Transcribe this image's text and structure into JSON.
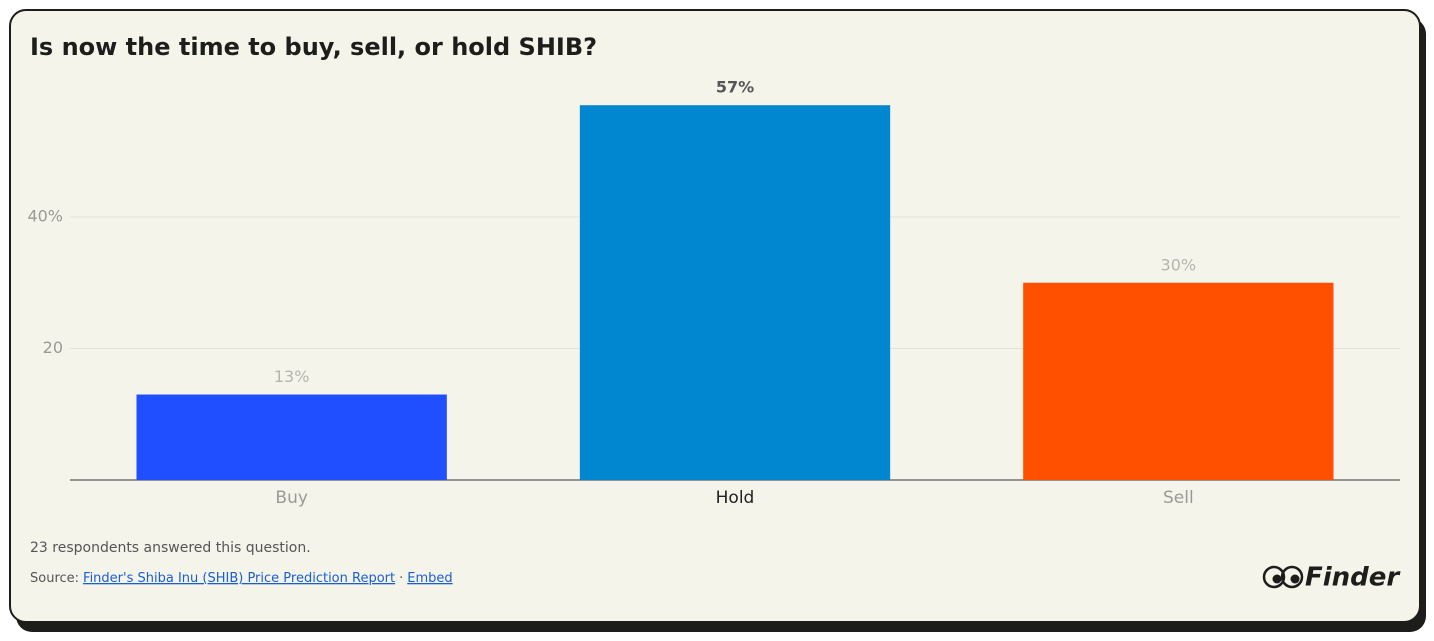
{
  "chart_data": {
    "type": "bar",
    "title": "Is now the time to buy, sell, or hold SHIB?",
    "categories": [
      "Buy",
      "Hold",
      "Sell"
    ],
    "values": [
      13,
      57,
      30
    ],
    "value_labels": [
      "13%",
      "57%",
      "30%"
    ],
    "colors": [
      "#1f4fff",
      "#0087cf",
      "#ff5000"
    ],
    "ylim": [
      0,
      60
    ],
    "yticks": [
      20,
      {
        "value": 40,
        "label": "40%"
      }
    ],
    "grid": true
  },
  "footer": {
    "note": "23 respondents answered this question.",
    "source_label": "Source:",
    "source_link": "Finder's Shiba Inu (SHIB) Price Prediction Report",
    "separator": "·",
    "embed": "Embed"
  },
  "logo": "Finder"
}
